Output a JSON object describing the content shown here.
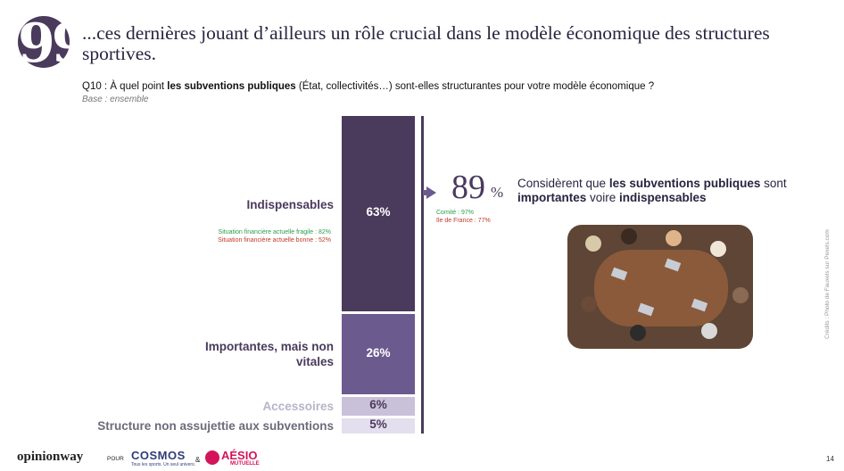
{
  "header": {
    "quote_glyph": "99",
    "title": "...ces dernières jouant d’ailleurs un rôle crucial dans le modèle économique des structures sportives.",
    "question_prefix": "Q10 : À quel point ",
    "question_bold": "les subventions publiques",
    "question_suffix": " (État, collectivités…) sont-elles structurantes pour votre modèle économique ?",
    "base": "Base : ensemble"
  },
  "chart_data": {
    "type": "bar",
    "orientation": "stacked-vertical",
    "categories": [
      "Indispensables",
      "Importantes, mais non vitales",
      "Accessoires",
      "Structure non assujettie aux subventions"
    ],
    "values": [
      63,
      26,
      6,
      5
    ],
    "value_labels": [
      "63%",
      "26%",
      "6%",
      "5%"
    ],
    "colors": [
      "#4a3a5c",
      "#6b5a8e",
      "#c9c1d9",
      "#e4dfee"
    ],
    "label_colors": [
      "#4a3a5c",
      "#4a3a5c",
      "#b9b3c8",
      "#6b6b7b"
    ],
    "value_text_colors": [
      "#ffffff",
      "#ffffff",
      "#4a3a5c",
      "#4a3a5c"
    ],
    "notes": {
      "fragile": "Situation financière actuelle fragile : 82%",
      "bonne": "Situation financière actuelle bonne : 52%"
    },
    "summary": {
      "value_number": "89",
      "value_suffix": "%",
      "comite": "Comité : 97%",
      "idf": "Ile de France : 77%"
    }
  },
  "summary_text": {
    "part1": "Considèrent que ",
    "bold1": "les subventions publiques",
    "part2": " sont ",
    "bold2": "importantes",
    "part3": " voire ",
    "bold3": "indispensables"
  },
  "footer": {
    "credits": "Crédits : Photo de Fauxels sur Pexels.com",
    "brand_opinion": "opinionway",
    "brand_pour": "POUR",
    "brand_cosmos": "COSMOS",
    "brand_cosmos_sub": "Tous les sports. Un seul univers.",
    "brand_amp": "&",
    "brand_aesio": "AÉSIO",
    "brand_mutuelle": "MUTUELLE",
    "page_number": "14"
  }
}
